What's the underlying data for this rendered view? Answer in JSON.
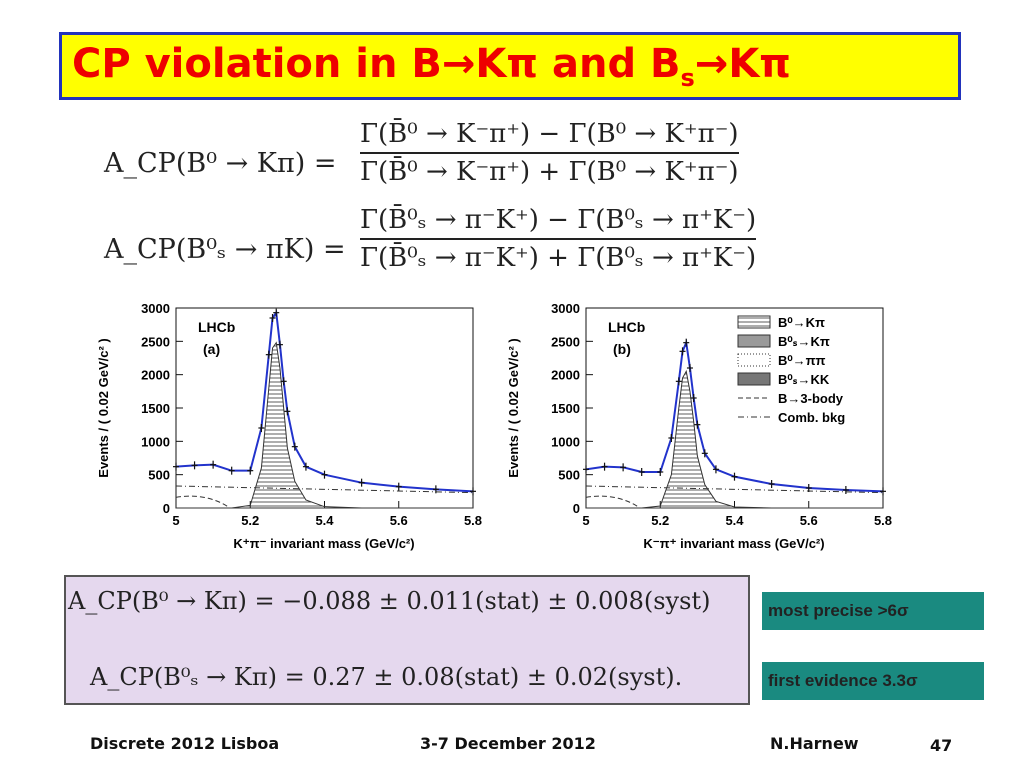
{
  "title": {
    "part1": "CP violation in B",
    "arrow": "→",
    "kpi": "Kπ",
    "and": " and B",
    "sub": "s",
    "arrow2": "→",
    "kpi2": "Kπ"
  },
  "formulas": [
    {
      "lhs": "A_CP(B⁰ → Kπ) =",
      "num": "Γ(B̄⁰ → K⁻π⁺) − Γ(B⁰ → K⁺π⁻)",
      "den": "Γ(B̄⁰ → K⁻π⁺) + Γ(B⁰ → K⁺π⁻)"
    },
    {
      "lhs": "A_CP(B⁰ₛ → πK) =",
      "num": "Γ(B̄⁰ₛ → π⁻K⁺) − Γ(B⁰ₛ → π⁺K⁻)",
      "den": "Γ(B̄⁰ₛ → π⁻K⁺) + Γ(B⁰ₛ → π⁺K⁻)"
    }
  ],
  "chart_data": [
    {
      "type": "line",
      "panel_label": "(a)",
      "experiment": "LHCb",
      "xlabel": "K⁺π⁻ invariant mass (GeV/c²)",
      "ylabel": "Events / ( 0.02 GeV/c² )",
      "xlim": [
        5.0,
        5.8
      ],
      "ylim": [
        0,
        3000
      ],
      "xticks": [
        "5",
        "5.2",
        "5.4",
        "5.6",
        "5.8"
      ],
      "yticks": [
        "0",
        "500",
        "1000",
        "1500",
        "2000",
        "2500",
        "3000"
      ],
      "x": [
        5.0,
        5.05,
        5.1,
        5.15,
        5.2,
        5.23,
        5.25,
        5.26,
        5.27,
        5.28,
        5.29,
        5.3,
        5.32,
        5.35,
        5.4,
        5.5,
        5.6,
        5.7,
        5.8
      ],
      "y": [
        620,
        640,
        650,
        560,
        560,
        1200,
        2300,
        2850,
        2930,
        2450,
        1900,
        1450,
        920,
        620,
        500,
        380,
        320,
        280,
        250
      ],
      "peak_component": [
        0,
        0,
        0,
        0,
        40,
        600,
        1800,
        2400,
        2480,
        2100,
        1500,
        900,
        400,
        120,
        20,
        0,
        0,
        0,
        0
      ]
    },
    {
      "type": "line",
      "panel_label": "(b)",
      "experiment": "LHCb",
      "xlabel": "K⁻π⁺ invariant mass (GeV/c²)",
      "ylabel": "Events / ( 0.02 GeV/c² )",
      "xlim": [
        5.0,
        5.8
      ],
      "ylim": [
        0,
        3000
      ],
      "xticks": [
        "5",
        "5.2",
        "5.4",
        "5.6",
        "5.8"
      ],
      "yticks": [
        "0",
        "500",
        "1000",
        "1500",
        "2000",
        "2500",
        "3000"
      ],
      "x": [
        5.0,
        5.05,
        5.1,
        5.15,
        5.2,
        5.23,
        5.25,
        5.26,
        5.27,
        5.28,
        5.29,
        5.3,
        5.32,
        5.35,
        5.4,
        5.5,
        5.6,
        5.7,
        5.8
      ],
      "y": [
        580,
        620,
        610,
        540,
        540,
        1050,
        1900,
        2350,
        2480,
        2100,
        1650,
        1250,
        820,
        580,
        470,
        360,
        300,
        270,
        250
      ],
      "peak_component": [
        0,
        0,
        0,
        0,
        30,
        500,
        1500,
        1950,
        2050,
        1750,
        1300,
        780,
        350,
        100,
        15,
        0,
        0,
        0,
        0
      ],
      "legend": [
        {
          "label": "B⁰→Kπ",
          "style": "hatch-horizontal"
        },
        {
          "label": "B⁰ₛ→Kπ",
          "style": "cross-hatch"
        },
        {
          "label": "B⁰→ππ",
          "style": "dotted"
        },
        {
          "label": "B⁰ₛ→KK",
          "style": "solid-gray"
        },
        {
          "label": "B→3-body",
          "style": "dashed"
        },
        {
          "label": "Comb. bkg",
          "style": "dash-dot"
        }
      ]
    }
  ],
  "results": [
    "A_CP(B⁰ → Kπ) = −0.088 ± 0.011(stat) ± 0.008(syst)",
    "A_CP(B⁰ₛ → Kπ) = 0.27 ± 0.08(stat) ± 0.02(syst)."
  ],
  "badges": {
    "precise": {
      "text": "most precise  >6σ",
      "color": "#1a8a80"
    },
    "evidence": {
      "text": "first evidence  3.3σ",
      "color": "#1a8a80"
    }
  },
  "footer": {
    "conference": "Discrete 2012 Lisboa",
    "dates": "3-7 December 2012",
    "author": "N.Harnew",
    "page": "47"
  },
  "colors": {
    "title": "#ee0000",
    "title_bg": "#ffff00",
    "title_border": "#2233bb",
    "fit": "#2233cc",
    "result_bg": "#e5d8ee"
  }
}
